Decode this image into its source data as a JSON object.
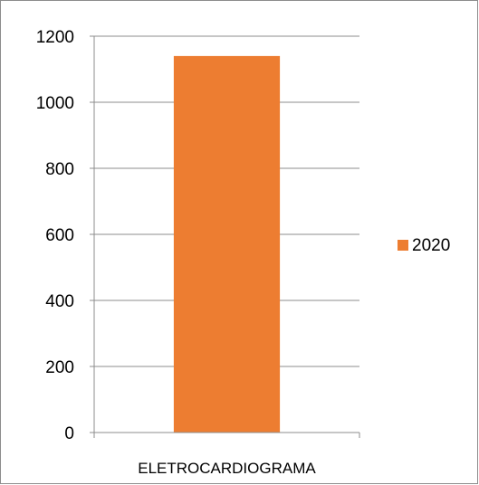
{
  "chart_data": {
    "type": "bar",
    "categories": [
      "ELETROCARDIOGRAMA"
    ],
    "series": [
      {
        "name": "2020",
        "values": [
          1140
        ],
        "color": "#ed7d31"
      }
    ],
    "ylim": [
      0,
      1200
    ],
    "yticks": [
      0,
      200,
      400,
      600,
      800,
      1000,
      1200
    ],
    "grid": true,
    "legend_position": "right"
  }
}
